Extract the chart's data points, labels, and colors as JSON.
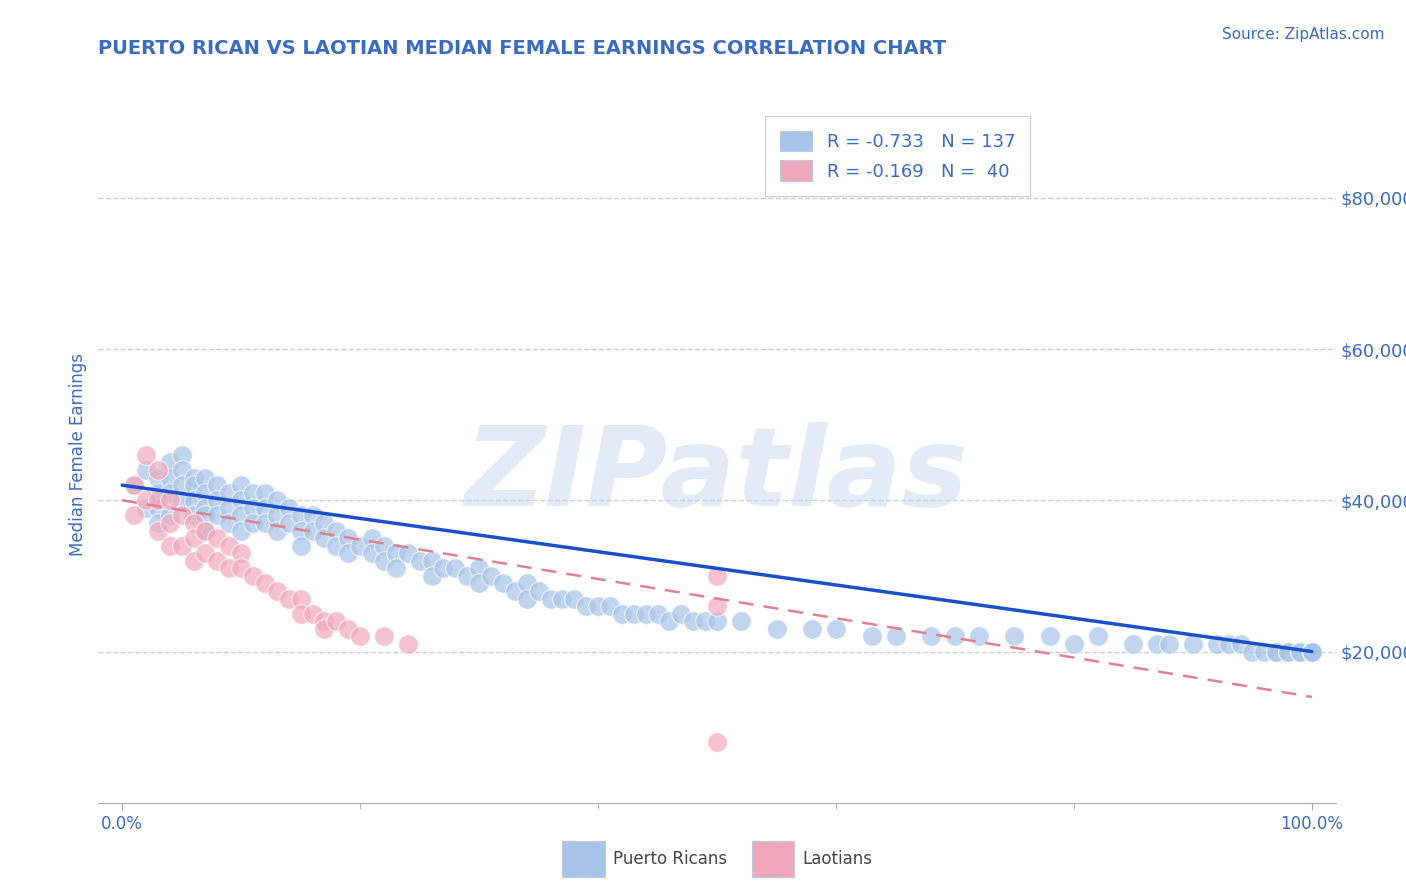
{
  "title": "PUERTO RICAN VS LAOTIAN MEDIAN FEMALE EARNINGS CORRELATION CHART",
  "source_text": "Source: ZipAtlas.com",
  "ylabel": "Median Female Earnings",
  "xlim": [
    -0.02,
    1.02
  ],
  "ylim": [
    0,
    92000
  ],
  "ytick_values": [
    20000,
    40000,
    60000,
    80000
  ],
  "ytick_labels": [
    "$20,000",
    "$40,000",
    "$60,000",
    "$80,000"
  ],
  "title_color": "#3a6bbf",
  "tick_color": "#3a6bbf",
  "grid_color": "#b0b8d0",
  "pr_color": "#a8c4e8",
  "la_color": "#f0a8bc",
  "pr_R": -0.733,
  "pr_N": 137,
  "la_R": -0.169,
  "la_N": 40,
  "legend_label_pr": "R = -0.733   N = 137",
  "legend_label_la": "R = -0.169   N =  40",
  "watermark": "ZIPatlas",
  "background_color": "#ffffff",
  "pr_trend_color": "#1a4fcc",
  "la_trend_color": "#e08090",
  "pr_trend_y0": 42000,
  "pr_trend_y1": 20000,
  "la_trend_y0": 40000,
  "la_trend_y1": 14000,
  "pr_scatter_x": [
    0.01,
    0.02,
    0.02,
    0.03,
    0.03,
    0.03,
    0.03,
    0.04,
    0.04,
    0.04,
    0.04,
    0.05,
    0.05,
    0.05,
    0.05,
    0.06,
    0.06,
    0.06,
    0.06,
    0.07,
    0.07,
    0.07,
    0.07,
    0.07,
    0.08,
    0.08,
    0.08,
    0.09,
    0.09,
    0.09,
    0.1,
    0.1,
    0.1,
    0.1,
    0.11,
    0.11,
    0.11,
    0.12,
    0.12,
    0.12,
    0.13,
    0.13,
    0.13,
    0.14,
    0.14,
    0.15,
    0.15,
    0.15,
    0.16,
    0.16,
    0.17,
    0.17,
    0.18,
    0.18,
    0.19,
    0.19,
    0.2,
    0.21,
    0.21,
    0.22,
    0.22,
    0.23,
    0.23,
    0.24,
    0.25,
    0.26,
    0.26,
    0.27,
    0.28,
    0.29,
    0.3,
    0.3,
    0.31,
    0.32,
    0.33,
    0.34,
    0.34,
    0.35,
    0.36,
    0.37,
    0.38,
    0.39,
    0.4,
    0.41,
    0.42,
    0.43,
    0.44,
    0.45,
    0.46,
    0.47,
    0.48,
    0.49,
    0.5,
    0.52,
    0.55,
    0.58,
    0.6,
    0.63,
    0.65,
    0.68,
    0.7,
    0.72,
    0.75,
    0.78,
    0.8,
    0.82,
    0.85,
    0.87,
    0.88,
    0.9,
    0.92,
    0.93,
    0.94,
    0.95,
    0.96,
    0.97,
    0.97,
    0.98,
    0.98,
    0.99,
    0.99,
    1.0,
    1.0,
    1.0,
    1.0,
    1.0,
    1.0,
    1.0,
    1.0,
    1.0,
    1.0,
    1.0,
    1.0,
    1.0,
    1.0,
    1.0,
    1.0
  ],
  "pr_scatter_y": [
    42000,
    44000,
    39000,
    43000,
    41000,
    39000,
    37000,
    45000,
    43000,
    41000,
    38000,
    46000,
    44000,
    42000,
    40000,
    43000,
    42000,
    40000,
    38000,
    43000,
    41000,
    39000,
    38000,
    36000,
    42000,
    40000,
    38000,
    41000,
    39000,
    37000,
    42000,
    40000,
    38000,
    36000,
    41000,
    39000,
    37000,
    41000,
    39000,
    37000,
    40000,
    38000,
    36000,
    39000,
    37000,
    38000,
    36000,
    34000,
    38000,
    36000,
    37000,
    35000,
    36000,
    34000,
    35000,
    33000,
    34000,
    35000,
    33000,
    34000,
    32000,
    33000,
    31000,
    33000,
    32000,
    32000,
    30000,
    31000,
    31000,
    30000,
    31000,
    29000,
    30000,
    29000,
    28000,
    29000,
    27000,
    28000,
    27000,
    27000,
    27000,
    26000,
    26000,
    26000,
    25000,
    25000,
    25000,
    25000,
    24000,
    25000,
    24000,
    24000,
    24000,
    24000,
    23000,
    23000,
    23000,
    22000,
    22000,
    22000,
    22000,
    22000,
    22000,
    22000,
    21000,
    22000,
    21000,
    21000,
    21000,
    21000,
    21000,
    21000,
    21000,
    20000,
    20000,
    20000,
    20000,
    20000,
    20000,
    20000,
    20000,
    20000,
    20000,
    20000,
    20000,
    20000,
    20000,
    20000,
    20000,
    20000,
    20000,
    20000,
    20000,
    20000,
    20000,
    20000,
    20000
  ],
  "la_scatter_x": [
    0.01,
    0.01,
    0.02,
    0.02,
    0.03,
    0.03,
    0.03,
    0.04,
    0.04,
    0.04,
    0.05,
    0.05,
    0.06,
    0.06,
    0.06,
    0.07,
    0.07,
    0.08,
    0.08,
    0.09,
    0.09,
    0.1,
    0.1,
    0.11,
    0.12,
    0.13,
    0.14,
    0.15,
    0.15,
    0.16,
    0.17,
    0.17,
    0.18,
    0.19,
    0.2,
    0.22,
    0.24,
    0.5,
    0.5,
    0.5
  ],
  "la_scatter_y": [
    42000,
    38000,
    46000,
    40000,
    44000,
    40000,
    36000,
    40000,
    37000,
    34000,
    38000,
    34000,
    37000,
    35000,
    32000,
    36000,
    33000,
    35000,
    32000,
    34000,
    31000,
    33000,
    31000,
    30000,
    29000,
    28000,
    27000,
    27000,
    25000,
    25000,
    24000,
    23000,
    24000,
    23000,
    22000,
    22000,
    21000,
    8000,
    26000,
    30000
  ]
}
